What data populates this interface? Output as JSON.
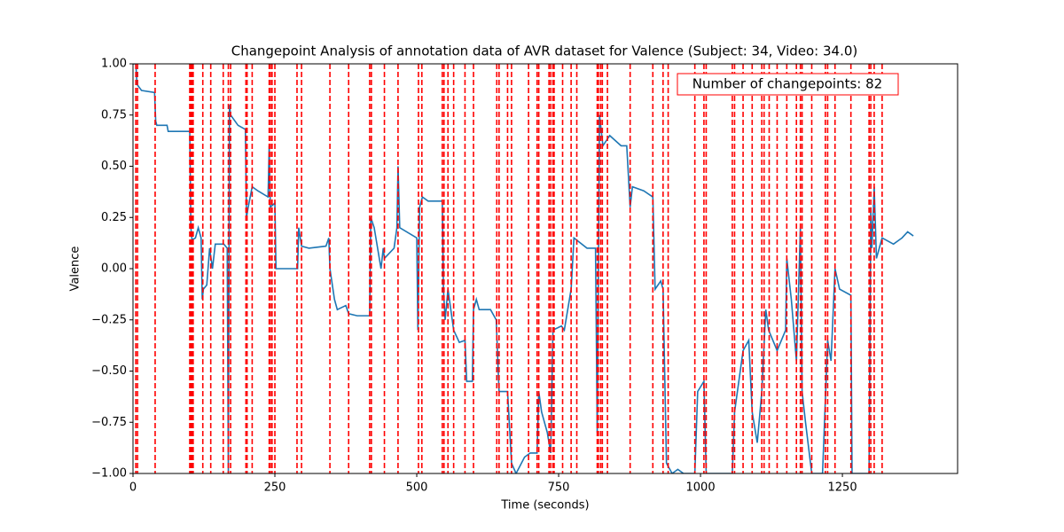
{
  "chart_data": {
    "type": "line",
    "title": "Changepoint Analysis of annotation data of AVR dataset for Valence (Subject: 34, Video: 34.0)",
    "xlabel": "Time (seconds)",
    "ylabel": "Valence",
    "annotation": "Number of changepoints: 82",
    "annotation_color": "#ff0000",
    "color": "#1f77b4",
    "x": [
      0,
      5,
      7,
      15,
      38,
      40,
      42,
      60,
      62,
      100,
      102,
      104,
      110,
      115,
      120,
      122,
      124,
      130,
      135,
      140,
      145,
      160,
      166,
      168,
      170,
      172,
      185,
      198,
      200,
      203,
      210,
      220,
      238,
      240,
      242,
      250,
      252,
      290,
      292,
      297,
      310,
      340,
      345,
      347,
      355,
      360,
      375,
      380,
      395,
      417,
      419,
      425,
      437,
      441,
      443,
      460,
      465,
      467,
      470,
      500,
      502,
      505,
      510,
      520,
      545,
      547,
      550,
      555,
      565,
      575,
      585,
      588,
      598,
      600,
      605,
      610,
      630,
      640,
      645,
      660,
      667,
      675,
      690,
      700,
      712,
      715,
      720,
      730,
      736,
      740,
      755,
      760,
      772,
      777,
      800,
      815,
      818,
      822,
      828,
      840,
      860,
      870,
      876,
      880,
      900,
      916,
      920,
      930,
      934,
      940,
      950,
      960,
      970,
      980,
      990,
      995,
      1006,
      1010,
      1056,
      1060,
      1075,
      1085,
      1091,
      1100,
      1108,
      1115,
      1120,
      1135,
      1150,
      1152,
      1160,
      1169,
      1176,
      1179,
      1185,
      1196,
      1215,
      1224,
      1230,
      1237,
      1245,
      1265,
      1267,
      1297,
      1300,
      1302,
      1306,
      1310,
      1320,
      1340,
      1355,
      1365,
      1375
    ],
    "values": [
      1.0,
      1.0,
      0.9,
      0.87,
      0.86,
      0.72,
      0.7,
      0.7,
      0.67,
      0.67,
      0.2,
      0.14,
      0.15,
      0.2,
      0.15,
      -0.15,
      -0.1,
      -0.08,
      0.1,
      0.0,
      0.12,
      0.12,
      0.1,
      -1.0,
      0.8,
      0.75,
      0.7,
      0.68,
      0.25,
      0.3,
      0.4,
      0.38,
      0.35,
      0.6,
      0.3,
      0.32,
      0.0,
      0.0,
      0.2,
      0.11,
      0.1,
      0.11,
      0.15,
      0.0,
      -0.15,
      -0.2,
      -0.18,
      -0.22,
      -0.23,
      -0.23,
      0.25,
      0.2,
      0.0,
      0.1,
      0.05,
      0.1,
      0.2,
      0.5,
      0.2,
      0.15,
      -0.3,
      0.3,
      0.35,
      0.33,
      0.33,
      -0.1,
      -0.25,
      -0.1,
      -0.3,
      -0.36,
      -0.35,
      -0.55,
      -0.55,
      -0.2,
      -0.15,
      -0.2,
      -0.2,
      -0.25,
      -0.6,
      -0.6,
      -0.95,
      -1.0,
      -0.92,
      -0.9,
      -0.9,
      -0.6,
      -0.7,
      -0.8,
      -0.9,
      -0.3,
      -0.28,
      -0.3,
      -0.1,
      0.15,
      0.1,
      0.1,
      -0.8,
      0.75,
      0.6,
      0.65,
      0.6,
      0.6,
      0.3,
      0.4,
      0.38,
      0.35,
      -0.1,
      -0.06,
      -0.1,
      -0.95,
      -1.0,
      -0.98,
      -1.0,
      -1.0,
      -1.0,
      -0.6,
      -0.55,
      -1.0,
      -1.0,
      -0.7,
      -0.4,
      -0.35,
      -0.7,
      -0.85,
      -0.6,
      -0.2,
      -0.3,
      -0.4,
      -0.3,
      0.05,
      -0.15,
      -0.45,
      0.2,
      -0.6,
      -0.75,
      -1.0,
      -1.0,
      -0.35,
      -0.45,
      0.0,
      -0.1,
      -0.13,
      -1.0,
      -1.0,
      0.3,
      0.1,
      0.4,
      0.05,
      0.15,
      0.12,
      0.15,
      0.18,
      0.16
    ],
    "changepoints": [
      5,
      8,
      39,
      100,
      102,
      104,
      106,
      123,
      137,
      159,
      168,
      172,
      199,
      201,
      210,
      240,
      242,
      245,
      250,
      289,
      297,
      347,
      380,
      417,
      420,
      443,
      467,
      503,
      509,
      545,
      548,
      555,
      565,
      585,
      600,
      641,
      645,
      660,
      667,
      697,
      712,
      715,
      733,
      736,
      740,
      742,
      757,
      772,
      782,
      818,
      820,
      824,
      827,
      836,
      876,
      916,
      934,
      943,
      990,
      1006,
      1010,
      1056,
      1060,
      1075,
      1091,
      1108,
      1112,
      1121,
      1135,
      1152,
      1169,
      1176,
      1179,
      1196,
      1220,
      1224,
      1237,
      1265,
      1297,
      1300,
      1306,
      1320
    ],
    "changepoint_color": "#ff0000",
    "xlim": [
      0,
      1453
    ],
    "ylim": [
      -1,
      1
    ],
    "xticks": [
      0,
      250,
      500,
      750,
      1000,
      1250
    ],
    "yticks": [
      {
        "value": -1,
        "label": "−1.00"
      },
      {
        "value": -0.75,
        "label": "−0.75"
      },
      {
        "value": -0.5,
        "label": "−0.50"
      },
      {
        "value": -0.25,
        "label": "−0.25"
      },
      {
        "value": 0,
        "label": "0.00"
      },
      {
        "value": 0.25,
        "label": "0.25"
      },
      {
        "value": 0.5,
        "label": "0.50"
      },
      {
        "value": 0.75,
        "label": "0.75"
      },
      {
        "value": 1,
        "label": "1.00"
      }
    ]
  }
}
